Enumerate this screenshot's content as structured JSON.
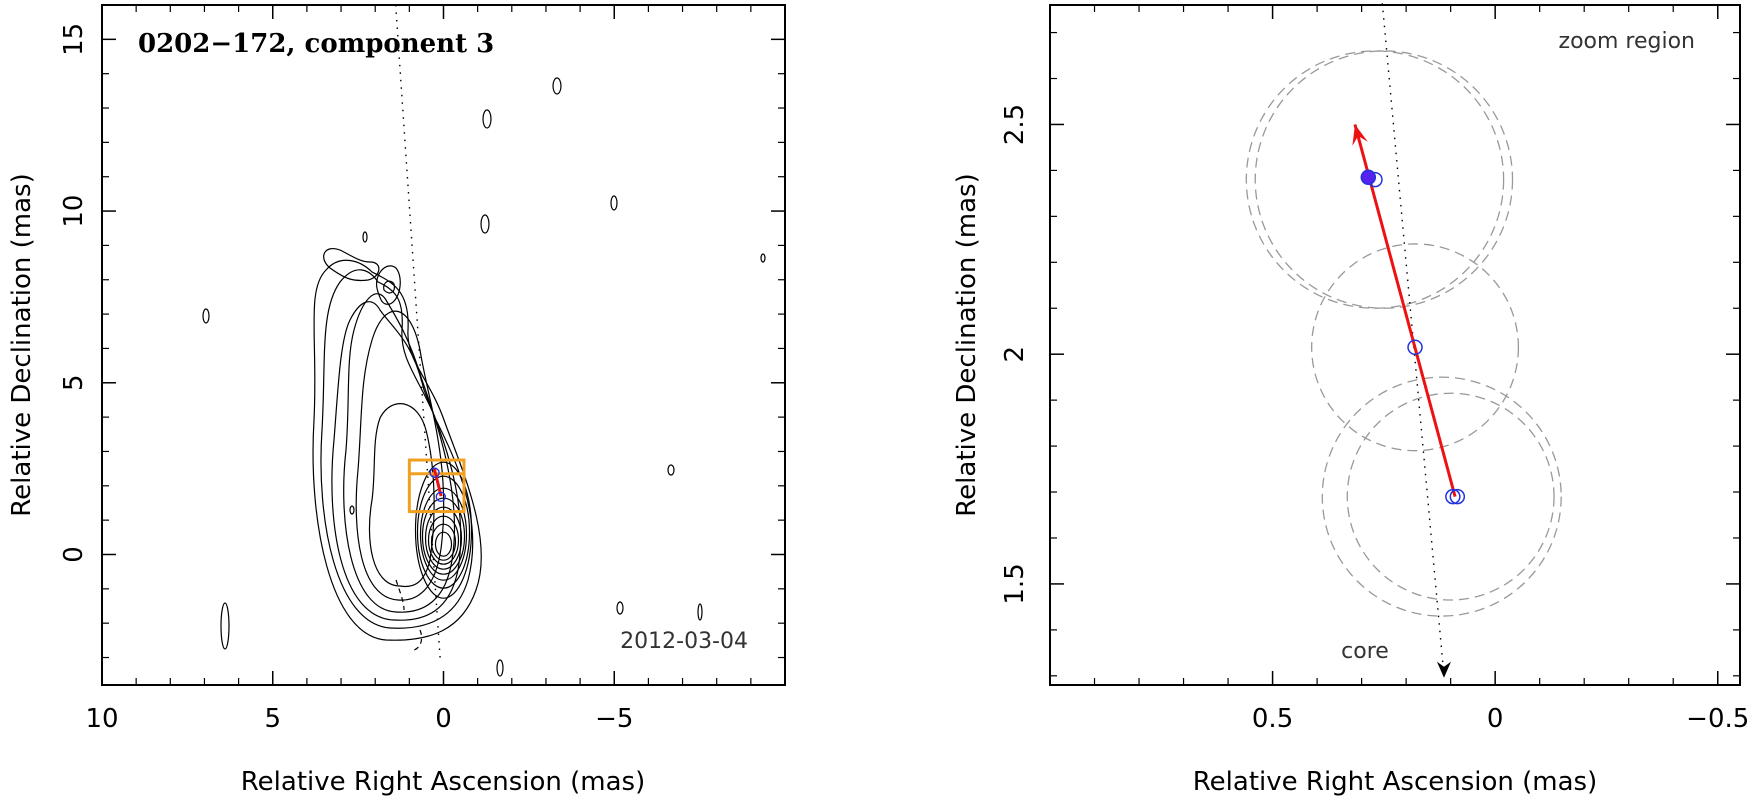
{
  "chart_data": [
    {
      "type": "contour-map",
      "title": "0202−172, component 3",
      "epoch": "2012-03-04",
      "xlabel": "Relative Right Ascension (mas)",
      "ylabel": "Relative Declination (mas)",
      "xlim": [
        10,
        -10
      ],
      "ylim": [
        -3.8,
        16
      ],
      "xticks": [
        10,
        5,
        0,
        -5
      ],
      "xtick_labels": [
        "10",
        "5",
        "0",
        "−5"
      ],
      "yticks": [
        0,
        5,
        10,
        15
      ],
      "ytick_labels": [
        "0",
        "5",
        "10",
        "15"
      ],
      "core": [
        0,
        0.3
      ],
      "jet_axis": [
        [
          1.4,
          16
        ],
        [
          0.1,
          -3
        ]
      ],
      "zoom_box_ra": [
        1.0,
        -0.6
      ],
      "zoom_box_dec": [
        1.25,
        2.75
      ],
      "zoom_box_inner_dec": 2.35,
      "trajectory": [
        [
          0.07,
          1.7
        ],
        [
          0.27,
          2.5
        ]
      ],
      "positions": [
        [
          0.26,
          2.38
        ],
        [
          0.08,
          1.68
        ]
      ]
    },
    {
      "type": "scatter",
      "annotation": "zoom region",
      "core_label": "core",
      "xlabel": "Relative Right Ascension (mas)",
      "ylabel": "Relative Declination (mas)",
      "xlim": [
        1.0,
        -0.55
      ],
      "ylim": [
        1.28,
        2.76
      ],
      "xticks": [
        0.5,
        0,
        -0.5
      ],
      "xtick_labels": [
        "0.5",
        "0",
        "−0.5"
      ],
      "yticks": [
        1.5,
        2,
        2.5
      ],
      "ytick_labels": [
        "1.5",
        "2",
        "2.5"
      ],
      "points_open": [
        [
          0.27,
          2.38
        ],
        [
          0.18,
          2.015
        ],
        [
          0.095,
          1.69
        ],
        [
          0.085,
          1.69
        ]
      ],
      "points_filled": [
        [
          0.285,
          2.385
        ]
      ],
      "error_circles": [
        {
          "x": 0.27,
          "y": 2.38,
          "r": 0.28
        },
        {
          "x": 0.25,
          "y": 2.38,
          "r": 0.28
        },
        {
          "x": 0.18,
          "y": 2.015,
          "r": 0.225
        },
        {
          "x": 0.12,
          "y": 1.69,
          "r": 0.26
        },
        {
          "x": 0.1,
          "y": 1.69,
          "r": 0.225
        }
      ],
      "velocity_vector": [
        [
          0.09,
          1.69
        ],
        [
          0.315,
          2.5
        ]
      ],
      "jet_axis": [
        [
          0.255,
          2.78
        ],
        [
          0.115,
          1.3
        ]
      ],
      "colors": {
        "vector": "#ee1111",
        "points": "#2233dd",
        "circles": "#999999",
        "box": "#f0a020"
      }
    }
  ]
}
